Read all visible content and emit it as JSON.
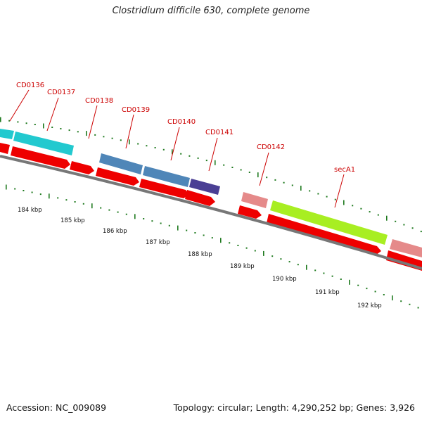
{
  "title": "Clostridium difficile 630, complete genome",
  "footer": {
    "accession": "Accession: NC_009089",
    "summary": "Topology: circular; Length: 4,290,252 bp; Genes: 3,926"
  },
  "colors": {
    "cds_strand": "#ee0000",
    "backbone": "#777777",
    "gc_ticks": "#1f7a1f",
    "label": "#cc0000",
    "cyan": "#22c9cf",
    "steel": "#4f86b8",
    "indigo": "#4a3f94",
    "pink": "#e58a8a",
    "lime": "#a8ee22"
  },
  "genes": [
    {
      "label": "CD0136",
      "color": "cyan"
    },
    {
      "label": "CD0137",
      "color": "cyan"
    },
    {
      "label": "CD0138",
      "color": "none"
    },
    {
      "label": "CD0139",
      "color": "steel"
    },
    {
      "label": "CD0140",
      "color": "steel"
    },
    {
      "label": "CD0141",
      "color": "indigo"
    },
    {
      "label": "CD0142",
      "color": "pink"
    },
    {
      "label": "secA1",
      "color": "lime"
    }
  ],
  "scale": [
    "184 kbp",
    "185 kbp",
    "186 kbp",
    "187 kbp",
    "188 kbp",
    "189 kbp",
    "190 kbp",
    "191 kbp",
    "192 kbp"
  ]
}
